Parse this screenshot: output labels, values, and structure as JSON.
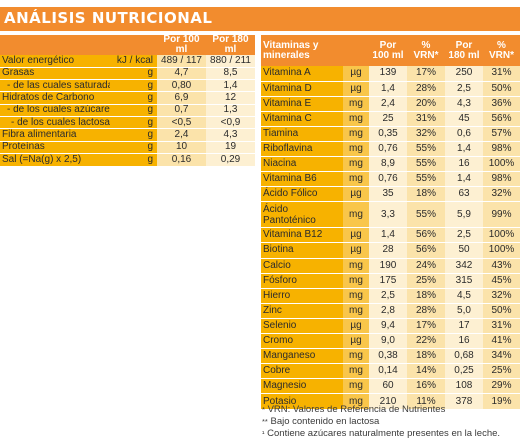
{
  "title": "ANÁLISIS NUTRICIONAL",
  "left_table": {
    "headers": [
      "",
      "",
      "Por 100 ml",
      "Por 180 ml"
    ],
    "rows": [
      {
        "label": "Valor energético",
        "unit": "kJ / kcal",
        "v1": "489 / 117",
        "v2": "880 / 211",
        "indent": 0
      },
      {
        "label": "Grasas",
        "unit": "g",
        "v1": "4,7",
        "v2": "8,5",
        "indent": 0
      },
      {
        "label": "- de las cuales saturadas",
        "unit": "g",
        "v1": "0,80",
        "v2": "1,4",
        "indent": 1
      },
      {
        "label": "Hidratos de Carbono",
        "unit": "g",
        "v1": "6,9",
        "v2": "12",
        "indent": 0
      },
      {
        "label": "- de los cuales azúcares",
        "unit": "g",
        "v1": "0,7",
        "v2": "1,3",
        "indent": 1
      },
      {
        "label": "- de los cuales lactosa**",
        "unit": "g",
        "v1": "<0,5",
        "v2": "<0,9",
        "indent": 2
      },
      {
        "label": "Fibra alimentaria",
        "unit": "g",
        "v1": "2,4",
        "v2": "4,3",
        "indent": 0
      },
      {
        "label": "Proteínas",
        "unit": "g",
        "v1": "10",
        "v2": "19",
        "indent": 0
      },
      {
        "label": "Sal (=Na(g) x 2,5)",
        "unit": "g",
        "v1": "0,16",
        "v2": "0,29",
        "indent": 0
      }
    ]
  },
  "right_table": {
    "headers": [
      "Vitaminas y minerales",
      "",
      "Por 100 ml",
      "% VRN*",
      "Por 180 ml",
      "% VRN*"
    ],
    "rows": [
      {
        "label": "Vitamina A",
        "unit": "µg",
        "v1": "139",
        "p1": "17%",
        "v2": "250",
        "p2": "31%"
      },
      {
        "label": "Vitamina D",
        "unit": "µg",
        "v1": "1,4",
        "p1": "28%",
        "v2": "2,5",
        "p2": "50%"
      },
      {
        "label": "Vitamina E",
        "unit": "mg",
        "v1": "2,4",
        "p1": "20%",
        "v2": "4,3",
        "p2": "36%"
      },
      {
        "label": "Vitamina C",
        "unit": "mg",
        "v1": "25",
        "p1": "31%",
        "v2": "45",
        "p2": "56%"
      },
      {
        "label": "Tiamina",
        "unit": "mg",
        "v1": "0,35",
        "p1": "32%",
        "v2": "0,6",
        "p2": "57%"
      },
      {
        "label": "Riboflavina",
        "unit": "mg",
        "v1": "0,76",
        "p1": "55%",
        "v2": "1,4",
        "p2": "98%"
      },
      {
        "label": "Niacina",
        "unit": "mg",
        "v1": "8,9",
        "p1": "55%",
        "v2": "16",
        "p2": "100%"
      },
      {
        "label": "Vitamina B6",
        "unit": "mg",
        "v1": "0,76",
        "p1": "55%",
        "v2": "1,4",
        "p2": "98%"
      },
      {
        "label": "Ácido Fólico",
        "unit": "µg",
        "v1": "35",
        "p1": "18%",
        "v2": "63",
        "p2": "32%"
      },
      {
        "label": "Ácido Pantoténico",
        "unit": "mg",
        "v1": "3,3",
        "p1": "55%",
        "v2": "5,9",
        "p2": "99%",
        "tall": true
      },
      {
        "label": "Vitamina B12",
        "unit": "µg",
        "v1": "1,4",
        "p1": "56%",
        "v2": "2,5",
        "p2": "100%"
      },
      {
        "label": "Biotina",
        "unit": "µg",
        "v1": "28",
        "p1": "56%",
        "v2": "50",
        "p2": "100%"
      },
      {
        "label": "Calcio",
        "unit": "mg",
        "v1": "190",
        "p1": "24%",
        "v2": "342",
        "p2": "43%"
      },
      {
        "label": "Fósforo",
        "unit": "mg",
        "v1": "175",
        "p1": "25%",
        "v2": "315",
        "p2": "45%"
      },
      {
        "label": "Hierro",
        "unit": "mg",
        "v1": "2,5",
        "p1": "18%",
        "v2": "4,5",
        "p2": "32%"
      },
      {
        "label": "Zinc",
        "unit": "mg",
        "v1": "2,8",
        "p1": "28%",
        "v2": "5,0",
        "p2": "50%"
      },
      {
        "label": "Selenio",
        "unit": "µg",
        "v1": "9,4",
        "p1": "17%",
        "v2": "17",
        "p2": "31%"
      },
      {
        "label": "Cromo",
        "unit": "µg",
        "v1": "9,0",
        "p1": "22%",
        "v2": "16",
        "p2": "41%"
      },
      {
        "label": "Manganeso",
        "unit": "mg",
        "v1": "0,38",
        "p1": "18%",
        "v2": "0,68",
        "p2": "34%"
      },
      {
        "label": "Cobre",
        "unit": "mg",
        "v1": "0,14",
        "p1": "14%",
        "v2": "0,25",
        "p2": "25%"
      },
      {
        "label": "Magnesio",
        "unit": "mg",
        "v1": "60",
        "p1": "16%",
        "v2": "108",
        "p2": "29%"
      },
      {
        "label": "Potasio",
        "unit": "mg",
        "v1": "210",
        "p1": "11%",
        "v2": "378",
        "p2": "19%"
      }
    ]
  },
  "footnotes": [
    {
      "mark": "*",
      "text": "VRN: Valores de Referencia de Nutrientes"
    },
    {
      "mark": "**",
      "text": "Bajo contenido en lactosa"
    },
    {
      "mark": "¹",
      "text": "Contiene azúcares naturalmente presentes en la leche."
    }
  ],
  "colors": {
    "title_bar": "#f28c2e",
    "label_cells": "#f7b200",
    "value_cells_light": "#fdf0d2",
    "value_cells_mid": "#fbe3aa"
  }
}
